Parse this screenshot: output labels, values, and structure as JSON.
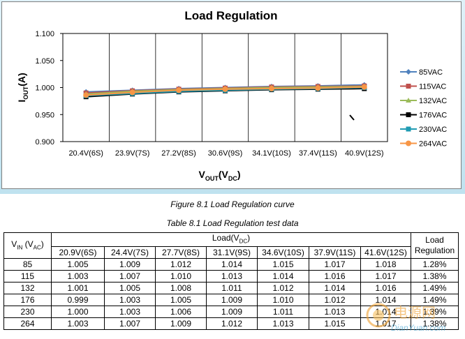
{
  "chart_data": {
    "type": "line",
    "title": "Load Regulation",
    "ylabel": "I_OUT(A)",
    "xlabel": "V_OUT(V_DC)",
    "categories": [
      "20.4V(6S)",
      "23.9V(7S)",
      "27.2V(8S)",
      "30.6V(9S)",
      "34.1V(10S)",
      "37.4V(11S)",
      "40.9V(12S)"
    ],
    "ylim": [
      0.9,
      1.1
    ],
    "yticks": [
      "0.900",
      "0.950",
      "1.000",
      "1.050",
      "1.100"
    ],
    "grid": "vertical",
    "legend": "right",
    "series": [
      {
        "name": "85VAC",
        "color": "#4f81bd",
        "marker": "diamond",
        "values": [
          0.992,
          0.995,
          0.998,
          1.0,
          1.002,
          1.003,
          1.005
        ]
      },
      {
        "name": "115VAC",
        "color": "#c0504d",
        "marker": "square",
        "values": [
          0.99,
          0.994,
          0.997,
          0.999,
          1.001,
          1.002,
          1.003
        ]
      },
      {
        "name": "132VAC",
        "color": "#9bbb59",
        "marker": "triangle",
        "values": [
          0.988,
          0.993,
          0.996,
          0.998,
          1.0,
          1.001,
          1.002
        ]
      },
      {
        "name": "176VAC",
        "color": "#000000",
        "marker": "square",
        "values": [
          0.983,
          0.988,
          0.992,
          0.994,
          0.996,
          0.997,
          0.998
        ]
      },
      {
        "name": "230VAC",
        "color": "#1f9bb3",
        "marker": "square",
        "values": [
          0.985,
          0.989,
          0.993,
          0.995,
          0.997,
          0.998,
          1.0
        ]
      },
      {
        "name": "264VAC",
        "color": "#f79646",
        "marker": "circle",
        "values": [
          0.986,
          0.991,
          0.995,
          0.997,
          0.998,
          0.999,
          1.001
        ]
      }
    ]
  },
  "captions": {
    "figure": "Figure 8.1 Load Regulation curve",
    "table": "Table 8.1 Load Regulation test data"
  },
  "table": {
    "vin_head": "V_IN (V_AC)",
    "load_head": "Load(V_DC)",
    "reg_head_1": "Load",
    "reg_head_2": "Regulation",
    "columns": [
      "20.9V(6S)",
      "24.4V(7S)",
      "27.7V(8S)",
      "31.1V(9S)",
      "34.6V(10S)",
      "37.9V(11S)",
      "41.6V(12S)"
    ],
    "rows": [
      {
        "vin": "85",
        "values": [
          "1.005",
          "1.009",
          "1.012",
          "1.014",
          "1.015",
          "1.017",
          "1.018"
        ],
        "reg": "1.28%"
      },
      {
        "vin": "115",
        "values": [
          "1.003",
          "1.007",
          "1.010",
          "1.013",
          "1.014",
          "1.016",
          "1.017"
        ],
        "reg": "1.38%"
      },
      {
        "vin": "132",
        "values": [
          "1.001",
          "1.005",
          "1.008",
          "1.011",
          "1.012",
          "1.014",
          "1.016"
        ],
        "reg": "1.49%"
      },
      {
        "vin": "176",
        "values": [
          "0.999",
          "1.003",
          "1.005",
          "1.009",
          "1.010",
          "1.012",
          "1.014"
        ],
        "reg": "1.49%"
      },
      {
        "vin": "230",
        "values": [
          "1.000",
          "1.003",
          "1.006",
          "1.009",
          "1.011",
          "1.013",
          "1.014"
        ],
        "reg": "1.39%"
      },
      {
        "vin": "264",
        "values": [
          "1.003",
          "1.007",
          "1.009",
          "1.012",
          "1.013",
          "1.015",
          "1.017"
        ],
        "reg": "1.38%"
      }
    ]
  },
  "watermark": {
    "line1": "电源网",
    "line2": "DianYuan.com"
  }
}
